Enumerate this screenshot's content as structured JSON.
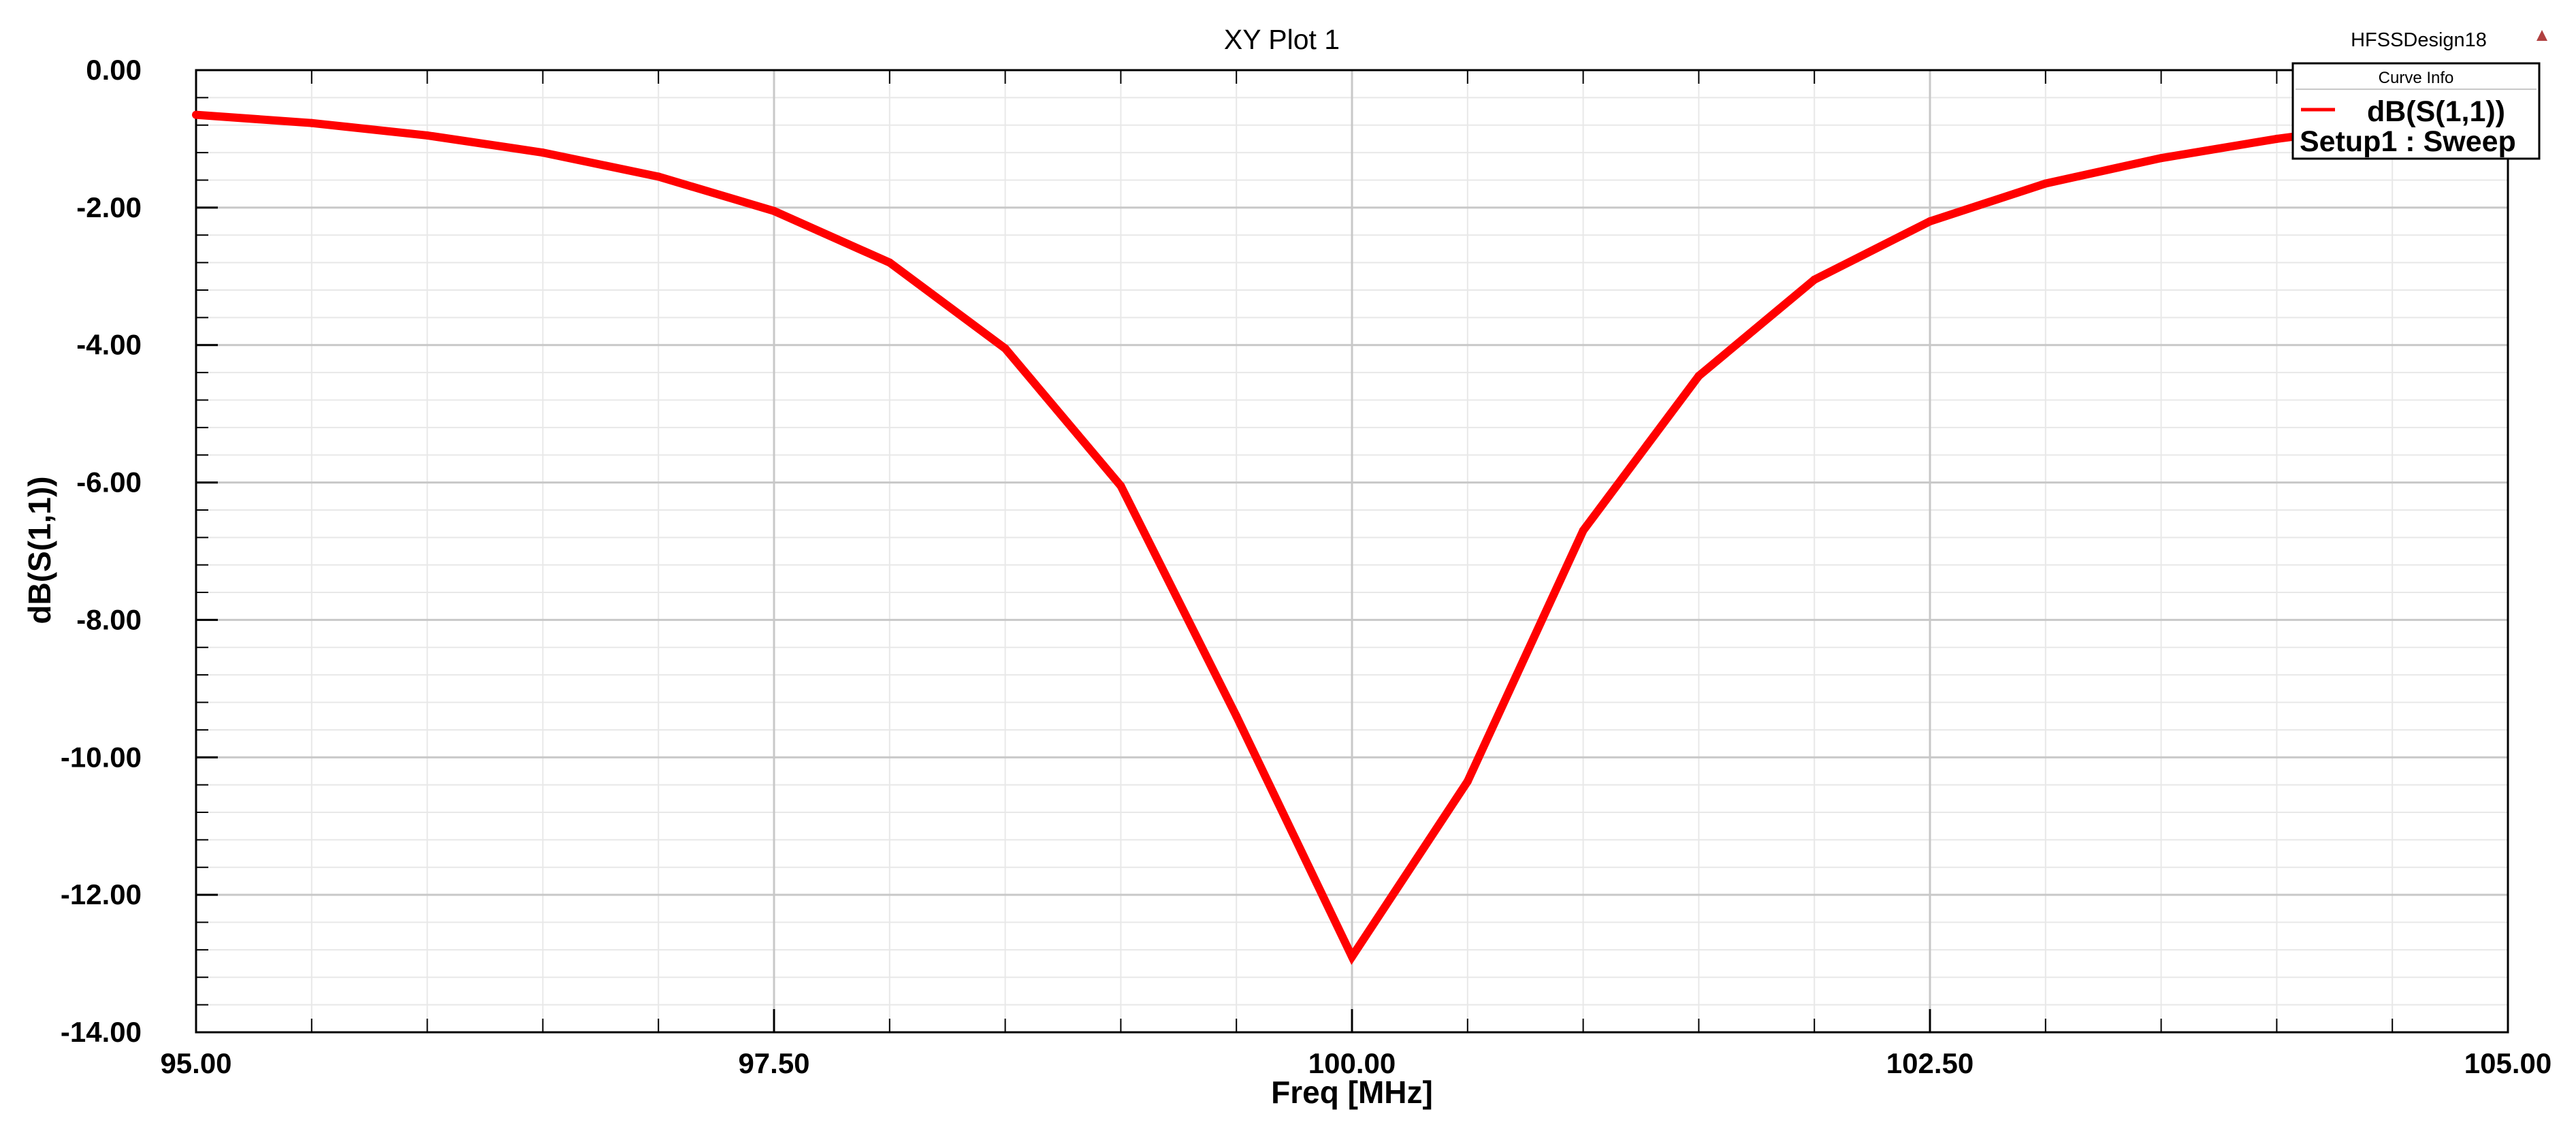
{
  "design_name": "HFSSDesign18",
  "colors": {
    "curve": "#ff0000",
    "grid_major": "#c8c8c8",
    "grid_minor": "#e8e8e8",
    "frame": "#000000",
    "corner_marker": "#b04040"
  },
  "legend": {
    "header": "Curve Info",
    "entries": [
      {
        "line1": "dB(S(1,1))",
        "line2": "Setup1 : Sweep"
      }
    ]
  },
  "chart_data": {
    "type": "line",
    "title": "XY Plot 1",
    "xlabel": "Freq [MHz]",
    "ylabel": "dB(S(1,1))",
    "xlim": [
      95.0,
      105.0
    ],
    "ylim": [
      -14.0,
      0.0
    ],
    "xticks": [
      95.0,
      97.5,
      100.0,
      102.5,
      105.0
    ],
    "xtick_labels": [
      "95.00",
      "97.50",
      "100.00",
      "102.50",
      "105.00"
    ],
    "yticks": [
      0.0,
      -2.0,
      -4.0,
      -6.0,
      -8.0,
      -10.0,
      -12.0,
      -14.0
    ],
    "ytick_labels": [
      "0.00",
      "-2.00",
      "-4.00",
      "-6.00",
      "-8.00",
      "-10.00",
      "-12.00",
      "-14.00"
    ],
    "x_minor_step": 0.5,
    "y_minor_step": 0.4,
    "grid": true,
    "legend_position": "top-right",
    "series": [
      {
        "name": "dB(S(1,1))",
        "x": [
          95.0,
          95.5,
          96.0,
          96.5,
          97.0,
          97.5,
          98.0,
          98.5,
          99.0,
          99.5,
          100.0,
          100.5,
          101.0,
          101.5,
          102.0,
          102.5,
          103.0,
          103.5,
          104.0,
          104.5,
          105.0
        ],
        "y": [
          -0.65,
          -0.77,
          -0.95,
          -1.2,
          -1.55,
          -2.05,
          -2.8,
          -4.05,
          -6.05,
          -9.4,
          -12.9,
          -10.35,
          -6.7,
          -4.45,
          -3.05,
          -2.2,
          -1.65,
          -1.28,
          -1.0,
          -0.78,
          -0.62
        ]
      }
    ]
  }
}
